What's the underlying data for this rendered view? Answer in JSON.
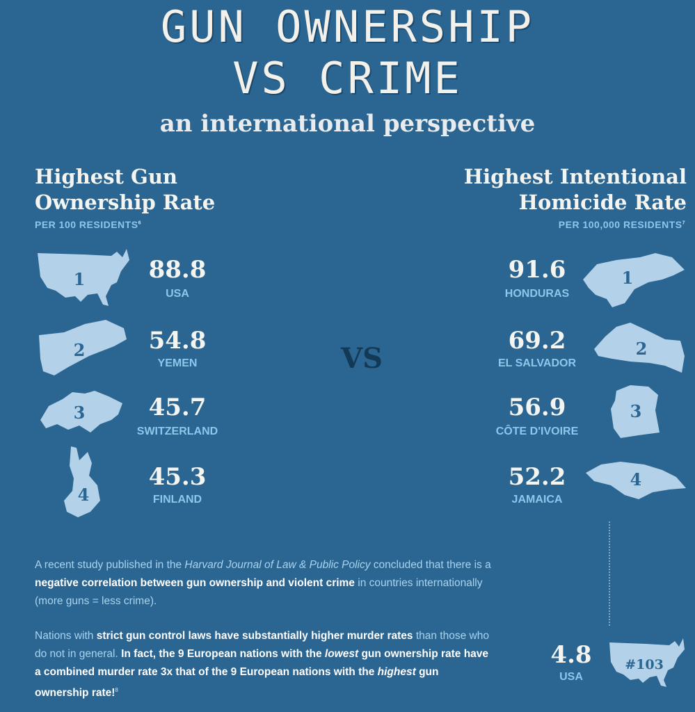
{
  "header": {
    "title_line1": "GUN OWNERSHIP",
    "title_line2": "VS CRIME",
    "subtitle": "an international perspective"
  },
  "left": {
    "heading_line1": "Highest Gun",
    "heading_line2": "Ownership Rate",
    "unit": "PER 100 RESIDENTS",
    "unit_ref": "6",
    "items": [
      {
        "rank": "1",
        "value": "88.8",
        "country": "USA",
        "icon": "usa-map-icon"
      },
      {
        "rank": "2",
        "value": "54.8",
        "country": "YEMEN",
        "icon": "yemen-map-icon"
      },
      {
        "rank": "3",
        "value": "45.7",
        "country": "SWITZERLAND",
        "icon": "switzerland-map-icon"
      },
      {
        "rank": "4",
        "value": "45.3",
        "country": "FINLAND",
        "icon": "finland-map-icon"
      }
    ]
  },
  "right": {
    "heading_line1": "Highest Intentional",
    "heading_line2": "Homicide Rate",
    "unit": "PER 100,000 RESIDENTS",
    "unit_ref": "7",
    "items": [
      {
        "rank": "1",
        "value": "91.6",
        "country": "HONDURAS",
        "icon": "honduras-map-icon"
      },
      {
        "rank": "2",
        "value": "69.2",
        "country": "EL SALVADOR",
        "icon": "el-salvador-map-icon"
      },
      {
        "rank": "3",
        "value": "56.9",
        "country": "CÔTE D'IVOIRE",
        "icon": "cote-divoire-map-icon"
      },
      {
        "rank": "4",
        "value": "52.2",
        "country": "JAMAICA",
        "icon": "jamaica-map-icon"
      }
    ],
    "usa": {
      "rank": "#103",
      "value": "4.8",
      "country": "USA",
      "icon": "usa-map-icon"
    }
  },
  "vs_label": "VS",
  "paragraph1": {
    "s1": "A recent study published in the ",
    "journal": "Harvard Journal of Law & Public Policy",
    "s2": " concluded that there is a ",
    "bold": "negative correlation between gun ownership and violent crime",
    "s3": " in countries internationally (more guns = less crime)."
  },
  "paragraph2": {
    "s1": "Nations with ",
    "bold1": "strict gun control laws have substantially higher murder rates",
    "s2": " than those who do not in general. ",
    "bold2a": "In fact, the 9 European nations with the ",
    "italic1": "lowest",
    "bold2b": " gun ownership rate have a combined murder rate 3x that of the 9 European nations with the ",
    "italic2": "highest",
    "bold2c": " gun ownership rate!",
    "ref": "8"
  },
  "colors": {
    "background": "#2b6591",
    "shape": "#b3d2ea",
    "accent": "#8ec6ec",
    "rank_number": "#2b6591"
  }
}
